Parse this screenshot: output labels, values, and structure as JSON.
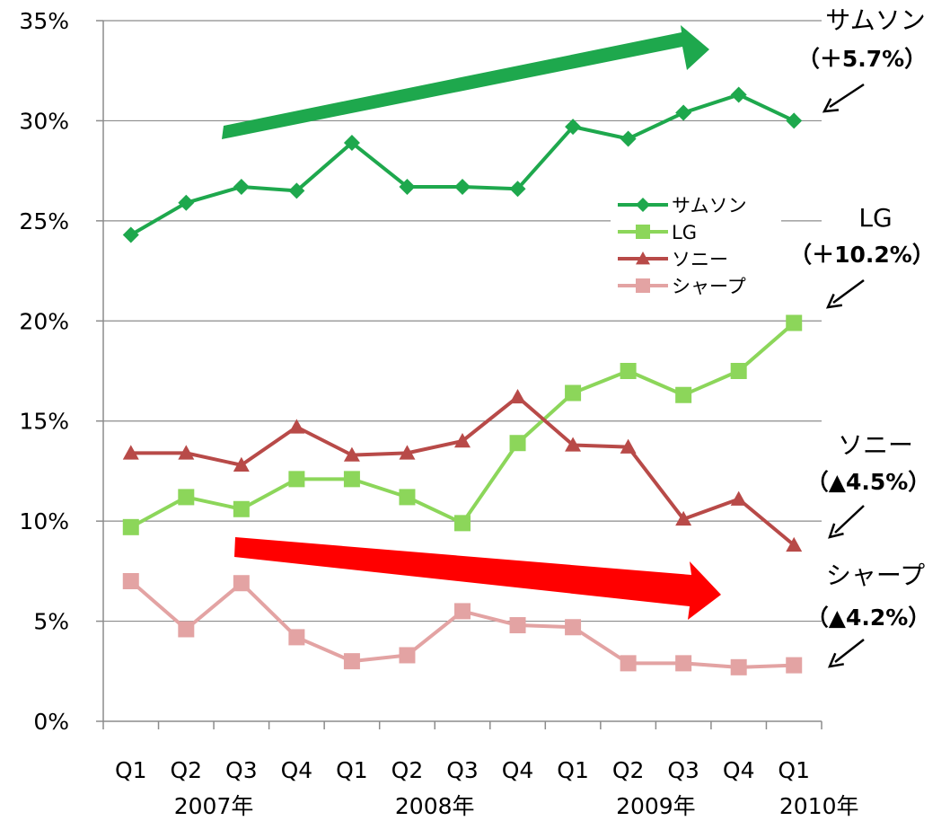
{
  "chart_data": {
    "type": "line",
    "categories": [
      "Q1",
      "Q2",
      "Q3",
      "Q4",
      "Q1",
      "Q2",
      "Q3",
      "Q4",
      "Q1",
      "Q2",
      "Q3",
      "Q4",
      "Q1"
    ],
    "year_labels": [
      "2007年",
      "2008年",
      "2009年",
      "2010年"
    ],
    "ylim": [
      0,
      35
    ],
    "yticks": [
      "0%",
      "5%",
      "10%",
      "15%",
      "20%",
      "25%",
      "30%",
      "35%"
    ],
    "grid": true,
    "legend_position": "center-right",
    "series": [
      {
        "name": "サムソン",
        "marker": "diamond",
        "color": "#1ea84d",
        "values": [
          24.3,
          25.9,
          26.7,
          26.5,
          28.9,
          26.7,
          26.7,
          26.6,
          29.7,
          29.1,
          30.4,
          31.3,
          30.0
        ]
      },
      {
        "name": "LG",
        "marker": "square",
        "color": "#8cd65a",
        "values": [
          9.7,
          11.2,
          10.6,
          12.1,
          12.1,
          11.2,
          9.9,
          13.9,
          16.4,
          17.5,
          16.3,
          17.5,
          19.9
        ]
      },
      {
        "name": "ソニー",
        "marker": "triangle",
        "color": "#b84a48",
        "values": [
          13.4,
          13.4,
          12.8,
          14.7,
          13.3,
          13.4,
          14.0,
          16.2,
          13.8,
          13.7,
          10.1,
          11.1,
          8.8
        ]
      },
      {
        "name": "シャープ",
        "marker": "square",
        "color": "#e3a3a3",
        "values": [
          7.0,
          4.6,
          6.9,
          4.2,
          3.0,
          3.3,
          5.5,
          4.8,
          4.7,
          2.9,
          2.9,
          2.7,
          2.8
        ]
      }
    ],
    "annotations": [
      {
        "series": "サムソン",
        "name": "サムソン",
        "change": "（＋5.7%）"
      },
      {
        "series": "LG",
        "name": "LG",
        "change": "（＋10.2%）"
      },
      {
        "series": "ソニー",
        "name": "ソニー",
        "change": "（▲4.5%）"
      },
      {
        "series": "シャープ",
        "name": "シャープ",
        "change": "（▲4.2%）"
      }
    ],
    "trend_arrows": [
      {
        "direction": "up",
        "color": "#1ea84d"
      },
      {
        "direction": "down",
        "color": "#ff0000"
      }
    ]
  }
}
